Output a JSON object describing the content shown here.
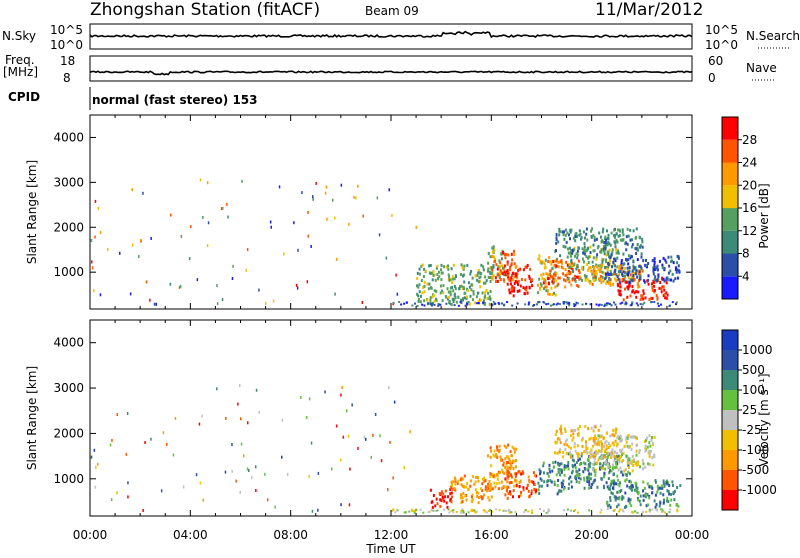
{
  "header": {
    "station": "Zhongshan Station (fitACF)",
    "beam": "Beam 09",
    "date": "11/Mar/2012"
  },
  "panels": {
    "nsky": {
      "label": "N.Sky",
      "top_tick": "10^5",
      "bottom_tick": "10^0"
    },
    "nsearch": {
      "label": "N.Search",
      "top_tick": "10^5",
      "bottom_tick": "10^0"
    },
    "freq": {
      "label": "Freq.",
      "unit": "[MHz]",
      "top_tick": "18",
      "bottom_tick": "8"
    },
    "nave": {
      "label": "Nave",
      "top_tick": "60",
      "bottom_tick": "0"
    },
    "cpid": {
      "label": "CPID",
      "value": "normal (fast stereo) 153"
    }
  },
  "colors": {
    "power": [
      "#1a1aff",
      "#2b4fa8",
      "#3e8a78",
      "#55a060",
      "#f0c000",
      "#ff9900",
      "#ff5500",
      "#ff0000"
    ],
    "velocity": [
      "#ff0000",
      "#ff5500",
      "#ff9900",
      "#f0c000",
      "#c0c0c0",
      "#66c040",
      "#3e8a78",
      "#2b4fa8",
      "#1a3cc0"
    ]
  },
  "chart_data": [
    {
      "type": "heatmap",
      "quantity": "Power",
      "ylabel": "Slant Range [km]",
      "xlabel": "Time UT",
      "ylim": [
        180,
        4500
      ],
      "y_ticks": [
        1000,
        2000,
        3000,
        4000
      ],
      "x_ticks": [
        "00:00",
        "04:00",
        "08:00",
        "12:00",
        "16:00",
        "20:00",
        "00:00"
      ],
      "xlim_hours": [
        0,
        24
      ],
      "colorbar_label": "Power [dB]",
      "colorbar_ticks": [
        "4",
        "8",
        "12",
        "16",
        "20",
        "24",
        "28"
      ],
      "regions": [
        {
          "t": [
            13.0,
            16.0
          ],
          "r": [
            300,
            1200
          ],
          "level": 3
        },
        {
          "t": [
            15.8,
            16.5
          ],
          "r": [
            900,
            1600
          ],
          "level": 3
        },
        {
          "t": [
            16.0,
            17.0
          ],
          "r": [
            800,
            1500
          ],
          "level": 6
        },
        {
          "t": [
            16.6,
            17.6
          ],
          "r": [
            500,
            1200
          ],
          "level": 7
        },
        {
          "t": [
            17.8,
            18.6
          ],
          "r": [
            500,
            1400
          ],
          "level": 4
        },
        {
          "t": [
            18.0,
            19.5
          ],
          "r": [
            700,
            1300
          ],
          "level": 6
        },
        {
          "t": [
            19.0,
            21.0
          ],
          "r": [
            800,
            1600
          ],
          "level": 3
        },
        {
          "t": [
            19.8,
            22.0
          ],
          "r": [
            700,
            1200
          ],
          "level": 5
        },
        {
          "t": [
            21.0,
            23.0
          ],
          "r": [
            400,
            900
          ],
          "level": 7
        },
        {
          "t": [
            20.5,
            23.5
          ],
          "r": [
            800,
            1400
          ],
          "level": 1
        },
        {
          "t": [
            18.5,
            22.0
          ],
          "r": [
            1400,
            2000
          ],
          "level": 2
        }
      ]
    },
    {
      "type": "heatmap",
      "quantity": "Velocity",
      "ylabel": "Slant Range [km]",
      "xlabel": "Time UT",
      "ylim": [
        180,
        4500
      ],
      "y_ticks": [
        1000,
        2000,
        3000,
        4000
      ],
      "x_ticks": [
        "00:00",
        "04:00",
        "08:00",
        "12:00",
        "16:00",
        "20:00",
        "00:00"
      ],
      "xlim_hours": [
        0,
        24
      ],
      "colorbar_label": "Velocity [m s⁻¹]",
      "colorbar_ticks": [
        "-1000",
        "-500",
        "-100",
        "-25",
        "25",
        "100",
        "500",
        "1000"
      ],
      "regions": [
        {
          "t": [
            13.5,
            14.5
          ],
          "r": [
            400,
            800
          ],
          "level": 0
        },
        {
          "t": [
            14.3,
            16.0
          ],
          "r": [
            500,
            1100
          ],
          "level": 2
        },
        {
          "t": [
            15.8,
            17.0
          ],
          "r": [
            800,
            1800
          ],
          "level": 2
        },
        {
          "t": [
            16.5,
            17.8
          ],
          "r": [
            600,
            1200
          ],
          "level": 1
        },
        {
          "t": [
            17.8,
            19.0
          ],
          "r": [
            700,
            1400
          ],
          "level": 6
        },
        {
          "t": [
            19.0,
            21.5
          ],
          "r": [
            800,
            1600
          ],
          "level": 6
        },
        {
          "t": [
            20.5,
            23.5
          ],
          "r": [
            400,
            1000
          ],
          "level": 6
        },
        {
          "t": [
            20.0,
            22.5
          ],
          "r": [
            1200,
            2000
          ],
          "level": 4
        },
        {
          "t": [
            18.5,
            21.0
          ],
          "r": [
            1500,
            2200
          ],
          "level": 3
        }
      ]
    }
  ]
}
